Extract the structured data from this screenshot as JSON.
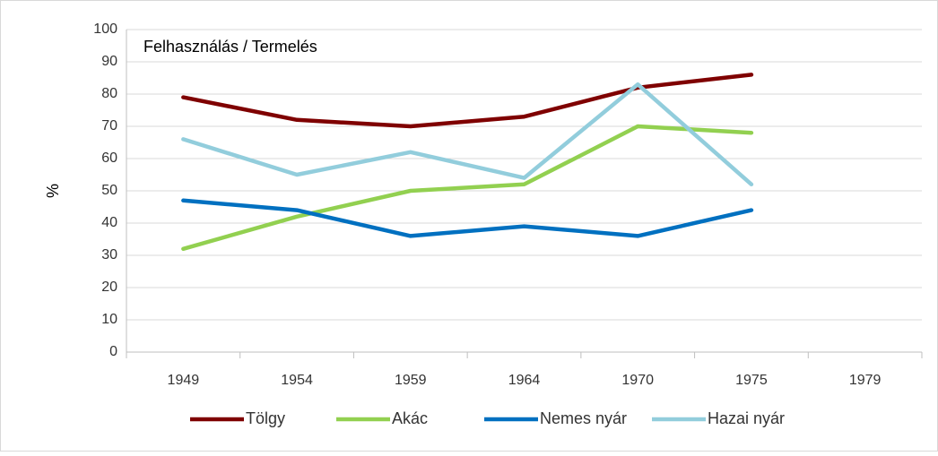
{
  "chart_data": {
    "type": "line",
    "title": "Felhasználás / Termelés",
    "y_label": "%",
    "categories": [
      "1949",
      "1954",
      "1959",
      "1964",
      "1970",
      "1975",
      "1979"
    ],
    "series": [
      {
        "name": "Tölgy",
        "color": "#7f0000",
        "values": [
          79,
          72,
          70,
          73,
          82,
          86,
          null
        ]
      },
      {
        "name": "Akác",
        "color": "#92d050",
        "values": [
          32,
          42,
          50,
          52,
          70,
          68,
          null
        ]
      },
      {
        "name": "Nemes nyár",
        "color": "#0070c0",
        "values": [
          47,
          44,
          36,
          39,
          36,
          44,
          null
        ]
      },
      {
        "name": "Hazai nyár",
        "color": "#92cddc",
        "values": [
          66,
          55,
          62,
          54,
          83,
          52,
          null
        ]
      }
    ],
    "ylim": [
      0,
      100
    ],
    "yticks": [
      0,
      10,
      20,
      30,
      40,
      50,
      60,
      70,
      80,
      90,
      100
    ],
    "grid": true,
    "legend": "bottom"
  }
}
